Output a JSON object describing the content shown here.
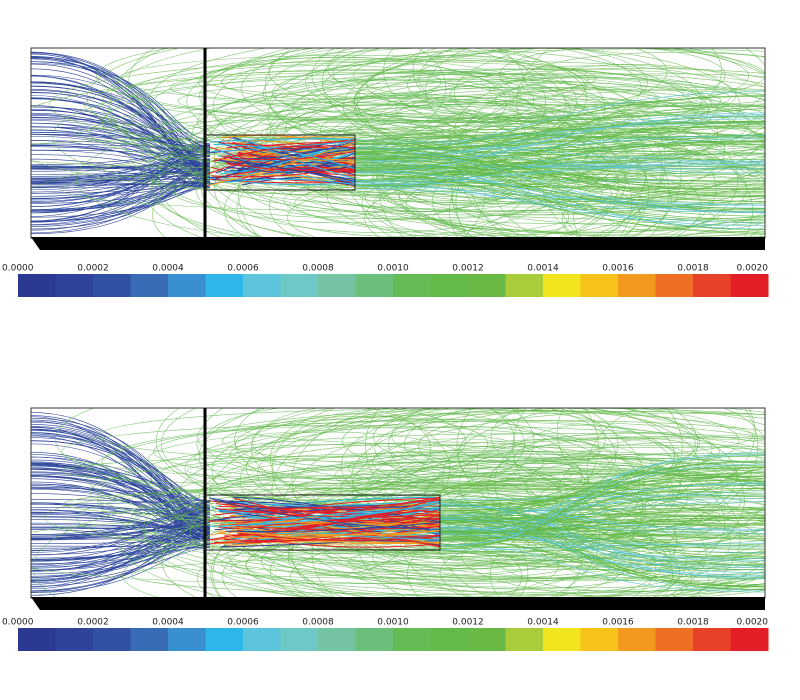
{
  "panels": [
    {
      "colorbar": {
        "lim": [
          0,
          0.002
        ],
        "ticks": [
          {
            "value": 0,
            "label": "0.0000"
          },
          {
            "value": 0.0002,
            "label": "0.0002"
          },
          {
            "value": 0.0004,
            "label": "0.0004"
          },
          {
            "value": 0.0006,
            "label": "0.0006"
          },
          {
            "value": 0.0008,
            "label": "0.0008"
          },
          {
            "value": 0.001,
            "label": "0.0010"
          },
          {
            "value": 0.0012,
            "label": "0.0012"
          },
          {
            "value": 0.0014,
            "label": "0.0014"
          },
          {
            "value": 0.0016,
            "label": "0.0016"
          },
          {
            "value": 0.0018,
            "label": "0.0018"
          },
          {
            "value": 0.002,
            "label": "0.0020"
          }
        ],
        "colors": [
          "#2b3990",
          "#2e4399",
          "#3152a3",
          "#3a6cb5",
          "#3a8fd0",
          "#2fb6e8",
          "#5cc5dc",
          "#6ec8c6",
          "#74c4a4",
          "#6cbf7a",
          "#65bc55",
          "#63ba47",
          "#6ab945",
          "#a8cc3a",
          "#f2e51f",
          "#f7c21a",
          "#f39a1e",
          "#ef6f22",
          "#e8412a",
          "#e31e26"
        ]
      }
    },
    {
      "colorbar": {
        "lim": [
          0,
          0.002
        ],
        "ticks": [
          {
            "value": 0,
            "label": "0.0000"
          },
          {
            "value": 0.0002,
            "label": "0.0002"
          },
          {
            "value": 0.0004,
            "label": "0.0004"
          },
          {
            "value": 0.0006,
            "label": "0.0006"
          },
          {
            "value": 0.0008,
            "label": "0.0008"
          },
          {
            "value": 0.001,
            "label": "0.0010"
          },
          {
            "value": 0.0012,
            "label": "0.0012"
          },
          {
            "value": 0.0014,
            "label": "0.0014"
          },
          {
            "value": 0.0016,
            "label": "0.0016"
          },
          {
            "value": 0.0018,
            "label": "0.0018"
          },
          {
            "value": 0.002,
            "label": "0.0020"
          }
        ],
        "colors": [
          "#2b3990",
          "#2e4399",
          "#3152a3",
          "#3a6cb5",
          "#3a8fd0",
          "#2fb6e8",
          "#5cc5dc",
          "#6ec8c6",
          "#74c4a4",
          "#6cbf7a",
          "#65bc55",
          "#63ba47",
          "#6ab945",
          "#a8cc3a",
          "#f2e51f",
          "#f7c21a",
          "#f39a1e",
          "#ef6f22",
          "#e8412a",
          "#e31e26"
        ]
      }
    }
  ]
}
